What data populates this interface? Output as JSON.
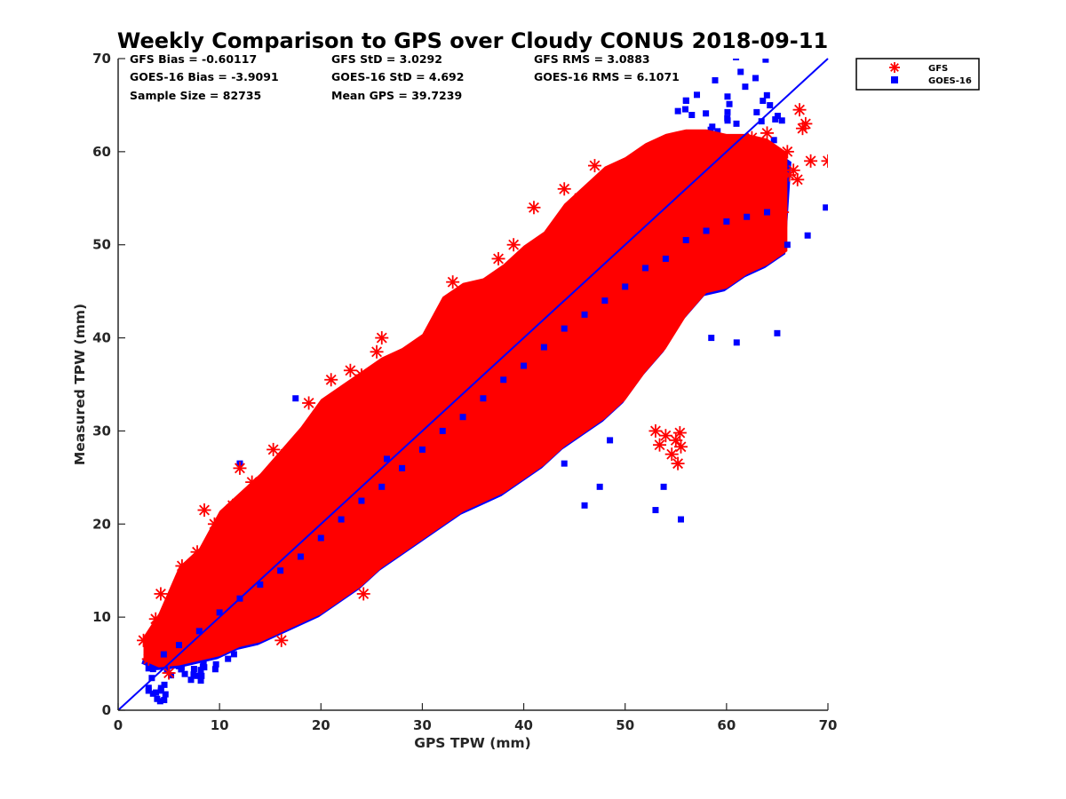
{
  "chart_data": {
    "type": "scatter",
    "title": "Weekly Comparison to GPS over Cloudy CONUS 2018-09-11",
    "xlabel": "GPS TPW (mm)",
    "ylabel": "Measured TPW (mm)",
    "xlim": [
      0,
      70
    ],
    "ylim": [
      0,
      70
    ],
    "xticks": [
      "0",
      "10",
      "20",
      "30",
      "40",
      "50",
      "60",
      "70"
    ],
    "yticks": [
      "0",
      "10",
      "20",
      "30",
      "40",
      "50",
      "60",
      "70"
    ],
    "grid": false,
    "legend_position": "outside-top-right",
    "reference_line": {
      "x": [
        0,
        70
      ],
      "y": [
        0,
        70
      ],
      "color": "#0000ff"
    },
    "stats": [
      [
        "GFS Bias = -0.60117",
        "GFS StD = 3.0292",
        "GFS RMS = 3.0883"
      ],
      [
        "GOES-16 Bias = -3.9091",
        "GOES-16 StD = 4.692",
        "GOES-16 RMS = 6.1071"
      ],
      [
        "Sample Size = 82735",
        "Mean GPS = 39.7239"
      ]
    ],
    "series": [
      {
        "name": "GFS",
        "marker": "asterisk",
        "color": "#ff0000",
        "x": [
          2.5,
          3.0,
          3.4,
          3.7,
          4.2,
          5.0,
          5.6,
          6.3,
          7.1,
          7.8,
          8.5,
          9.5,
          10.2,
          11.3,
          12.0,
          13.2,
          14.5,
          15.3,
          16.1,
          16.5,
          17.0,
          18.0,
          18.8,
          19.2,
          20.3,
          21.0,
          21.6,
          22.4,
          22.9,
          23.1,
          23.6,
          24.0,
          24.2,
          25.5,
          26.0,
          27.1,
          28.0,
          29.5,
          31.0,
          33.0,
          33.7,
          35.0,
          37.5,
          38.5,
          39.0,
          41.0,
          44.0,
          45.5,
          47.0,
          47.6,
          48.0,
          50.0,
          52.0,
          53.0,
          53.4,
          54.0,
          54.6,
          55.0,
          55.4,
          55.2,
          55.5,
          54.2,
          56.0,
          58.0,
          60.0,
          61.5,
          62.5,
          63.0,
          63.6,
          64.0,
          64.5,
          65.0,
          65.2,
          65.5,
          66.0,
          66.2,
          66.6,
          67.0,
          67.2,
          67.5,
          67.8,
          68.3,
          70.0
        ],
        "y": [
          7.5,
          5.5,
          6.8,
          9.8,
          12.5,
          4.0,
          8.5,
          15.5,
          11.0,
          17.0,
          21.5,
          20.0,
          18.5,
          22.0,
          26.0,
          24.5,
          24.0,
          28.0,
          7.5,
          27.5,
          26.8,
          28.5,
          33.0,
          30.0,
          32.5,
          35.5,
          33.0,
          31.0,
          36.5,
          33.8,
          34.0,
          36.0,
          12.5,
          38.5,
          40.0,
          37.0,
          36.5,
          39.0,
          38.0,
          46.0,
          44.5,
          42.0,
          48.5,
          46.5,
          50.0,
          54.0,
          56.0,
          55.0,
          58.5,
          53.0,
          49.0,
          56.0,
          52.5,
          30.0,
          28.5,
          29.5,
          27.5,
          29.0,
          29.8,
          26.5,
          28.3,
          59.5,
          56.5,
          59.0,
          61.0,
          59.5,
          61.5,
          55.0,
          60.5,
          62.0,
          58.5,
          59.0,
          51.5,
          53.5,
          60.0,
          57.5,
          58.0,
          57.0,
          64.5,
          62.5,
          63.0,
          59.0,
          59.0
        ]
      },
      {
        "name": "GOES-16",
        "marker": "square",
        "color": "#0000ff",
        "x": [
          3.0,
          4.5,
          6.0,
          8.0,
          10.0,
          12.0,
          14.0,
          16.0,
          18.0,
          20.0,
          22.0,
          24.0,
          26.0,
          28.0,
          30.0,
          32.0,
          34.0,
          36.0,
          38.0,
          40.0,
          42.0,
          44.0,
          46.0,
          48.0,
          50.0,
          52.0,
          54.0,
          56.0,
          58.0,
          60.0,
          62.0,
          64.0,
          66.0,
          68.0,
          69.8,
          44.0,
          46.0,
          47.5,
          48.5,
          53.0,
          53.8,
          55.5,
          58.5,
          61.0,
          65.0,
          56.0,
          17.5,
          26.5,
          12.0
        ],
        "y": [
          4.5,
          6.0,
          7.0,
          8.5,
          10.5,
          12.0,
          13.5,
          15.0,
          16.5,
          18.5,
          20.5,
          22.5,
          24.0,
          26.0,
          28.0,
          30.0,
          31.5,
          33.5,
          35.5,
          37.0,
          39.0,
          41.0,
          42.5,
          44.0,
          45.5,
          47.5,
          48.5,
          50.5,
          51.5,
          52.5,
          53.0,
          53.5,
          50.0,
          51.0,
          54.0,
          26.5,
          22.0,
          24.0,
          29.0,
          21.5,
          24.0,
          20.5,
          40.0,
          39.5,
          40.5,
          65.5,
          33.5,
          27.0,
          26.5
        ]
      }
    ]
  }
}
